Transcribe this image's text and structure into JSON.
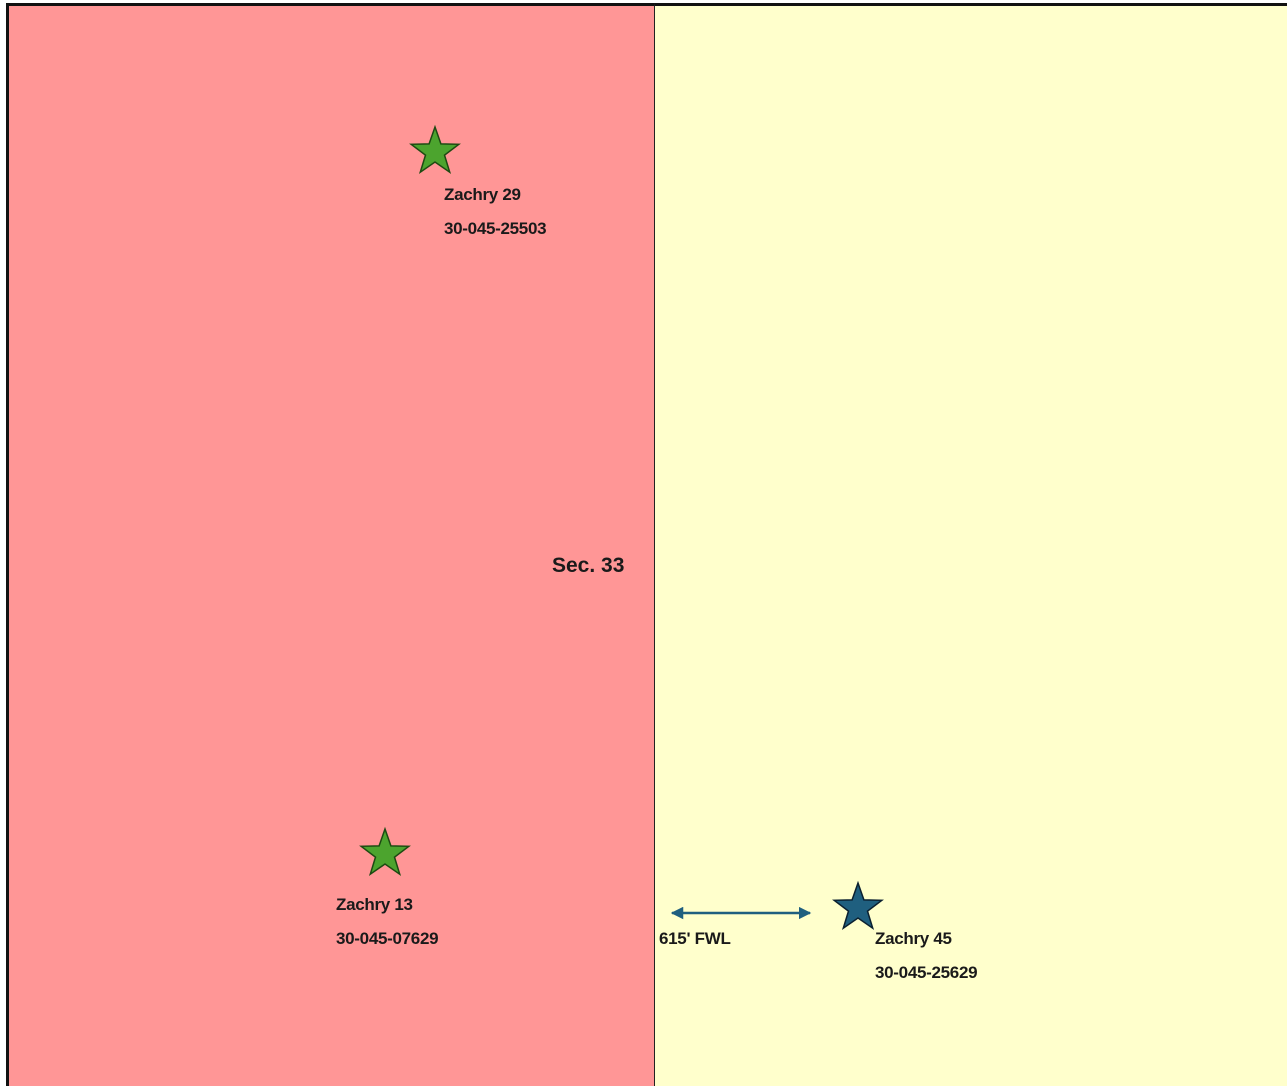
{
  "colors": {
    "section_fill": "#FF9696",
    "adjacent_fill": "#FFFFCC",
    "active_well": "#4CA42E",
    "subject_well": "#1F5F7F",
    "dimension_arrow": "#1F5F7F"
  },
  "section": {
    "label": "Sec. 33"
  },
  "wells": [
    {
      "name": "Zachry 29",
      "api": "30-045-25503",
      "icon": "star-icon"
    },
    {
      "name": "Zachry 13",
      "api": "30-045-07629",
      "icon": "star-icon"
    },
    {
      "name": "Zachry 45",
      "api": "30-045-25629",
      "icon": "star-icon"
    }
  ],
  "dimension": {
    "label": "615' FWL"
  }
}
